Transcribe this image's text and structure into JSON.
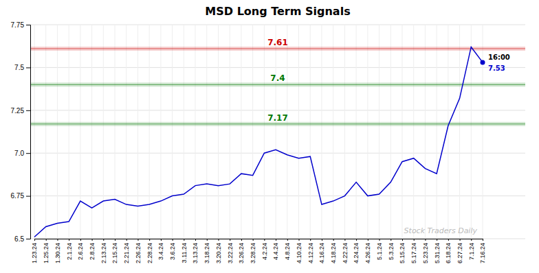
{
  "chart_data": {
    "type": "line",
    "title": "MSD Long Term Signals",
    "color": "#0000cc",
    "grid": true,
    "watermark": "Stock Traders Daily",
    "categories": [
      "1.23.24",
      "1.25.24",
      "1.30.24",
      "2.1.24",
      "2.6.24",
      "2.8.24",
      "2.13.24",
      "2.15.24",
      "2.21.24",
      "2.26.24",
      "2.28.24",
      "3.4.24",
      "3.6.24",
      "3.11.24",
      "3.13.24",
      "3.18.24",
      "3.20.24",
      "3.22.24",
      "3.26.24",
      "3.28.24",
      "4.2.24",
      "4.4.24",
      "4.8.24",
      "4.10.24",
      "4.12.24",
      "4.16.24",
      "4.18.24",
      "4.22.24",
      "4.24.24",
      "4.26.24",
      "5.1.24",
      "5.3.24",
      "5.15.24",
      "5.17.24",
      "5.23.24",
      "5.31.24",
      "6.18.24",
      "6.27.24",
      "7.1.24",
      "7.16.24"
    ],
    "values": [
      6.51,
      6.57,
      6.59,
      6.6,
      6.72,
      6.68,
      6.72,
      6.73,
      6.7,
      6.69,
      6.7,
      6.72,
      6.75,
      6.76,
      6.81,
      6.82,
      6.81,
      6.82,
      6.88,
      6.87,
      7.0,
      7.02,
      6.99,
      6.97,
      6.98,
      6.7,
      6.72,
      6.75,
      6.83,
      6.75,
      6.76,
      6.83,
      6.95,
      6.97,
      6.91,
      6.88,
      7.16,
      7.32,
      7.62,
      7.53
    ],
    "reference_lines": [
      {
        "value": 7.61,
        "color": "#cc0000"
      },
      {
        "value": 7.4,
        "color": "#007700"
      },
      {
        "value": 7.17,
        "color": "#007700"
      }
    ],
    "end_label": {
      "text": "16:00",
      "value": 7.53,
      "color": "#0000cc"
    },
    "ylim": [
      6.5,
      7.75
    ],
    "yticks": [
      6.5,
      6.75,
      {
        "value": 7,
        "label": "7.0"
      },
      7.25,
      7.5,
      7.75
    ]
  }
}
